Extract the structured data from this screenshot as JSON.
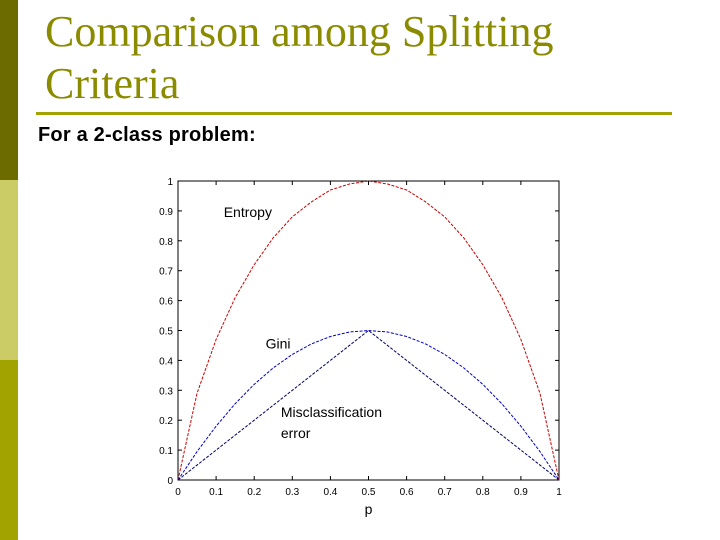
{
  "slide": {
    "title": "Comparison among Splitting Criteria",
    "subtitle": "For a 2-class problem:",
    "colors": {
      "bar_top": "#6b6b00",
      "bar_mid": "#cccc66",
      "bar_bottom": "#a3a300",
      "title": "#8b8b00"
    }
  },
  "chart_data": {
    "type": "line",
    "xlabel": "p",
    "ylabel": "",
    "xlim": [
      0,
      1
    ],
    "ylim": [
      0,
      1
    ],
    "xticks": [
      "0",
      "0.1",
      "0.2",
      "0.3",
      "0.4",
      "0.5",
      "0.6",
      "0.7",
      "0.8",
      "0.9",
      "1"
    ],
    "yticks": [
      "0",
      "0.1",
      "0.2",
      "0.3",
      "0.4",
      "0.5",
      "0.6",
      "0.7",
      "0.8",
      "0.9",
      "1"
    ],
    "grid": false,
    "x": [
      0,
      0.05,
      0.1,
      0.15,
      0.2,
      0.25,
      0.3,
      0.35,
      0.4,
      0.45,
      0.5,
      0.55,
      0.6,
      0.65,
      0.7,
      0.75,
      0.8,
      0.85,
      0.9,
      0.95,
      1
    ],
    "series": [
      {
        "name": "Entropy",
        "color": "#cc0000",
        "values": [
          0,
          0.29,
          0.47,
          0.61,
          0.72,
          0.81,
          0.88,
          0.93,
          0.97,
          0.99,
          1,
          0.99,
          0.97,
          0.93,
          0.88,
          0.81,
          0.72,
          0.61,
          0.47,
          0.29,
          0
        ]
      },
      {
        "name": "Gini",
        "color": "#0000cc",
        "values": [
          0,
          0.095,
          0.18,
          0.255,
          0.32,
          0.375,
          0.42,
          0.455,
          0.48,
          0.495,
          0.5,
          0.495,
          0.48,
          0.455,
          0.42,
          0.375,
          0.32,
          0.255,
          0.18,
          0.095,
          0
        ]
      },
      {
        "name": "Misclassification error",
        "color": "#000066",
        "values": [
          0,
          0.05,
          0.1,
          0.15,
          0.2,
          0.25,
          0.3,
          0.35,
          0.4,
          0.45,
          0.5,
          0.45,
          0.4,
          0.35,
          0.3,
          0.25,
          0.2,
          0.15,
          0.1,
          0.05,
          0
        ]
      }
    ],
    "annotations": [
      {
        "text": "Entropy",
        "x": 0.12,
        "y": 0.88
      },
      {
        "text": "Gini",
        "x": 0.23,
        "y": 0.44
      },
      {
        "text": "Misclassification",
        "x": 0.27,
        "y": 0.21
      },
      {
        "text": "error",
        "x": 0.27,
        "y": 0.14
      }
    ]
  }
}
